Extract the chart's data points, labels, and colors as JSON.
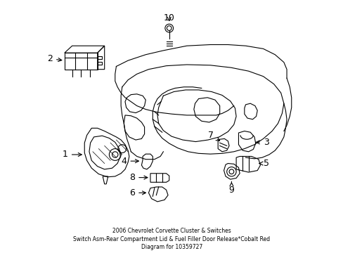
{
  "figsize": [
    4.89,
    3.6
  ],
  "dpi": 100,
  "background_color": "#ffffff",
  "title_lines": [
    "2006 Chevrolet Corvette Cluster & Switches",
    "Switch Asm-Rear Compartment Lid & Fuel Filler Door Release*Cobalt Red",
    "Diagram for 10359727"
  ],
  "title_fontsize": 5.5,
  "label_fontsize": 9,
  "lc": "#000000",
  "lw": 0.8
}
